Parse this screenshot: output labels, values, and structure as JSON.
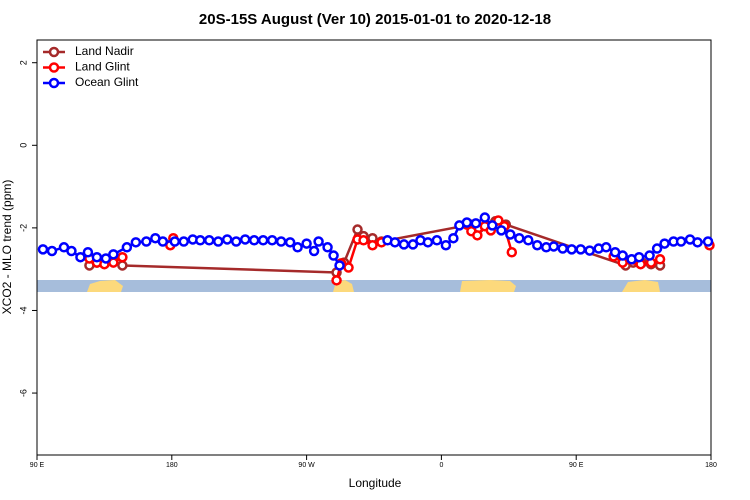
{
  "chart_data": {
    "type": "line",
    "title": "20S-15S August (Ver 10)   2015-01-01 to 2020-12-18",
    "xlabel": "Longitude",
    "ylabel": "XCO2 - MLO trend (ppm)",
    "xlim": [
      90,
      540
    ],
    "ylim": [
      -7.5,
      2.55
    ],
    "xticks": [
      {
        "value": 90,
        "label": "90 E"
      },
      180,
      {
        "value": 270,
        "label": "90 W"
      },
      {
        "value": 360,
        "label": "0"
      },
      {
        "value": 450,
        "label": "90 E"
      },
      {
        "value": 540,
        "label": "180"
      }
    ],
    "yticks": [
      -6,
      -4,
      -2,
      0,
      2
    ],
    "legend": "top-left",
    "series": [
      {
        "name": "Land Nadir",
        "color": "#a52a2a",
        "x": [
          125,
          130,
          135,
          141,
          147,
          290,
          295,
          304,
          308,
          314,
          320,
          380,
          385,
          390,
          396,
          403,
          483,
          488,
          494,
          500,
          506
        ],
        "values": [
          -2.91,
          -2.84,
          -2.84,
          -2.79,
          -2.91,
          -3.08,
          -2.84,
          -2.04,
          -2.2,
          -2.25,
          -2.33,
          -1.92,
          -2.01,
          -1.96,
          -1.84,
          -1.92,
          -2.91,
          -2.84,
          -2.84,
          -2.88,
          -2.91
        ]
      },
      {
        "name": "Land Glint",
        "color": "#ff0000",
        "x": [
          125,
          130,
          135,
          141,
          147,
          150,
          179,
          181,
          185,
          290,
          293,
          298,
          304,
          308,
          314,
          320,
          330,
          377,
          380,
          384,
          389,
          393,
          398,
          402,
          407,
          420,
          475,
          481,
          493,
          500,
          506,
          520,
          539
        ],
        "values": [
          -2.74,
          -2.84,
          -2.88,
          -2.84,
          -2.71,
          null,
          -2.42,
          -2.25,
          null,
          -3.27,
          -2.86,
          -2.96,
          -2.28,
          -2.3,
          -2.42,
          -2.35,
          null,
          -1.92,
          -2.08,
          -2.18,
          -1.96,
          -2.06,
          -1.82,
          -1.96,
          -2.59,
          null,
          -2.69,
          -2.84,
          -2.88,
          -2.84,
          -2.76,
          null,
          -2.42
        ]
      },
      {
        "name": "Ocean Glint",
        "color": "#0000ff",
        "x": [
          94,
          100,
          108,
          113,
          119,
          124,
          130,
          136,
          141,
          150,
          156,
          163,
          169,
          174,
          182,
          188,
          194,
          199,
          205,
          211,
          217,
          223,
          229,
          235,
          241,
          247,
          253,
          259,
          264,
          270,
          275,
          278,
          284,
          288,
          292,
          310,
          324,
          329,
          335,
          341,
          346,
          351,
          357,
          363,
          368,
          372,
          377,
          383,
          389,
          394,
          400,
          406,
          412,
          418,
          424,
          430,
          435,
          441,
          447,
          453,
          459,
          465,
          470,
          476,
          481,
          487,
          492,
          499,
          504,
          509,
          515,
          520,
          526,
          531,
          538
        ],
        "values": [
          -2.52,
          -2.56,
          -2.47,
          -2.56,
          -2.71,
          -2.59,
          -2.71,
          -2.74,
          -2.64,
          -2.47,
          -2.35,
          -2.33,
          -2.25,
          -2.33,
          -2.33,
          -2.33,
          -2.28,
          -2.3,
          -2.3,
          -2.33,
          -2.28,
          -2.33,
          -2.28,
          -2.3,
          -2.3,
          -2.3,
          -2.33,
          -2.35,
          -2.47,
          -2.38,
          -2.56,
          -2.33,
          -2.47,
          -2.67,
          -2.91,
          null,
          -2.3,
          -2.35,
          -2.4,
          -2.4,
          -2.3,
          -2.35,
          -2.3,
          -2.42,
          -2.25,
          -1.94,
          -1.87,
          -1.89,
          -1.75,
          -1.94,
          -2.06,
          -2.16,
          -2.25,
          -2.3,
          -2.42,
          -2.47,
          -2.45,
          -2.5,
          -2.52,
          -2.52,
          -2.55,
          -2.5,
          -2.47,
          -2.59,
          -2.67,
          -2.76,
          -2.71,
          -2.67,
          -2.5,
          -2.38,
          -2.33,
          -2.33,
          -2.28,
          -2.35,
          -2.33
        ]
      }
    ]
  }
}
